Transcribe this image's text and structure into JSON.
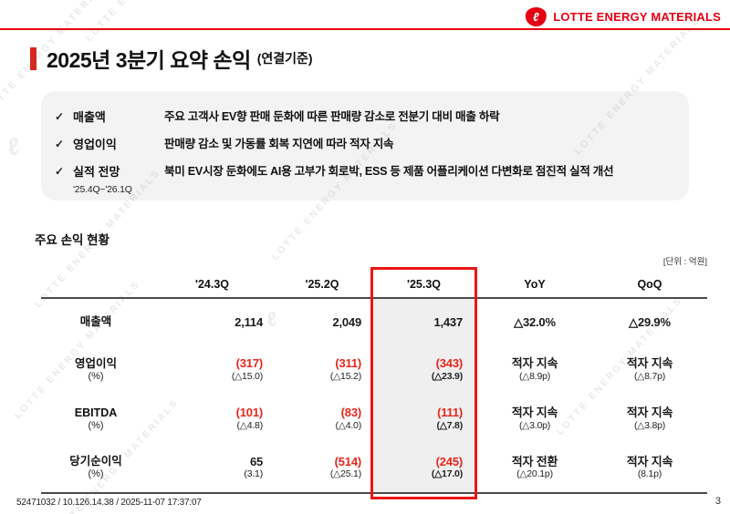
{
  "brand": {
    "name": "LOTTE ENERGY MATERIALS",
    "logo_glyph": "ℓ"
  },
  "colors": {
    "accent": "#e60012",
    "title_bar": "#d7261d",
    "negative": "#e8251c",
    "highlight_border": "#ed1515",
    "highlight_bg": "#f0eff0",
    "summary_bg": "#f3f3f4",
    "rule": "#4a4a4a"
  },
  "slide": {
    "title": "2025년 3분기 요약 손익",
    "title_suffix": "(연결기준)",
    "watermark": "LOTTE ENERGY MATERIALS",
    "footer": "52471032 / 10.126.14.38 / 2025-11-07 17:37:07",
    "page_number": "3"
  },
  "summary": {
    "items": [
      {
        "check": "✓",
        "label": "매출액",
        "sublabel": "",
        "desc": "주요 고객사 EV향 판매 둔화에 따른 판매량 감소로 전분기 대비 매출 하락"
      },
      {
        "check": "✓",
        "label": "영업이익",
        "sublabel": "",
        "desc": "판매량 감소 및 가동률 회복 지연에 따라 적자 지속"
      },
      {
        "check": "✓",
        "label": "실적 전망",
        "sublabel": "'25.4Q~'26.1Q",
        "desc": "북미 EV시장 둔화에도 AI용 고부가 회로박, ESS 등 제품 어플리케이션 다변화로 점진적 실적 개선"
      }
    ]
  },
  "table": {
    "section_title": "주요 손익 현황",
    "unit": "[단위 : 억원]",
    "columns": [
      "",
      "'24.3Q",
      "'25.2Q",
      "'25.3Q",
      "YoY",
      "QoQ"
    ],
    "highlight_column_index": 3,
    "rows": [
      {
        "label": "매출액",
        "label2": "",
        "cells": [
          {
            "v": "2,114"
          },
          {
            "v": "2,049"
          },
          {
            "v": "1,437"
          },
          {
            "v": "△32.0%"
          },
          {
            "v": "△29.9%"
          }
        ]
      },
      {
        "label": "영업이익",
        "label2": "(%)",
        "cells": [
          {
            "v": "(317)",
            "neg": true,
            "sub": "(△15.0)"
          },
          {
            "v": "(311)",
            "neg": true,
            "sub": "(△15.2)"
          },
          {
            "v": "(343)",
            "neg": true,
            "sub": "(△23.9)"
          },
          {
            "v": "적자 지속",
            "sub": "(△8.9p)"
          },
          {
            "v": "적자 지속",
            "sub": "(△8.7p)"
          }
        ]
      },
      {
        "label": "EBITDA",
        "label2": "(%)",
        "cells": [
          {
            "v": "(101)",
            "neg": true,
            "sub": "(△4.8)"
          },
          {
            "v": "(83)",
            "neg": true,
            "sub": "(△4.0)"
          },
          {
            "v": "(111)",
            "neg": true,
            "sub": "(△7.8)"
          },
          {
            "v": "적자 지속",
            "sub": "(△3.0p)"
          },
          {
            "v": "적자 지속",
            "sub": "(△3.8p)"
          }
        ]
      },
      {
        "label": "당기순이익",
        "label2": "(%)",
        "cells": [
          {
            "v": "65",
            "sub": "(3.1)"
          },
          {
            "v": "(514)",
            "neg": true,
            "sub": "(△25.1)"
          },
          {
            "v": "(245)",
            "neg": true,
            "sub": "(△17.0)"
          },
          {
            "v": "적자 전환",
            "sub": "(△20.1p)"
          },
          {
            "v": "적자 지속",
            "sub": "(8.1p)"
          }
        ]
      }
    ]
  }
}
